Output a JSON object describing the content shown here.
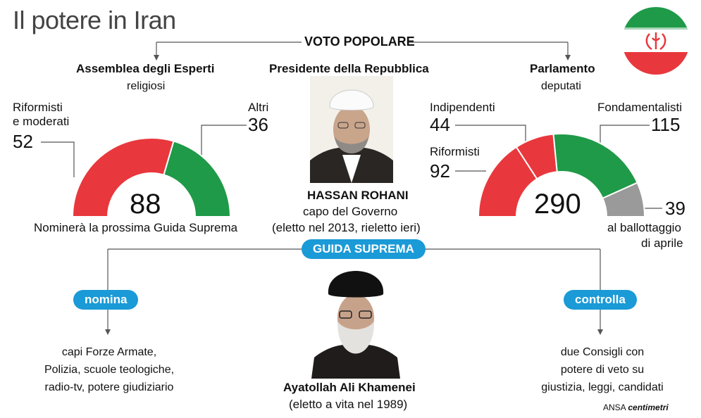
{
  "title": "Il potere in Iran",
  "voto_popolare": "VOTO POPOLARE",
  "assemblea": {
    "title": "Assemblea degli Esperti",
    "subtitle": "religiosi",
    "caption": "Nominerà la prossima Guida Suprema"
  },
  "presidente": {
    "title": "Presidente della Repubblica",
    "name": "HASSAN ROHANI",
    "role": "capo del Governo",
    "note": "(eletto nel 2013, rieletto ieri)"
  },
  "parlamento": {
    "title": "Parlamento",
    "subtitle": "deputati"
  },
  "guida": {
    "label": "GUIDA SUPREMA",
    "name": "Ayatollah Ali Khamenei",
    "note": "(eletto a vita nel 1989)",
    "nomina_label": "nomina",
    "nomina_lines": [
      "capi Forze Armate,",
      "Polizia, scuole teologiche,",
      "radio-tv, potere giudiziario"
    ],
    "controlla_label": "controlla",
    "controlla_lines": [
      "due Consigli con",
      "potere di veto su",
      "giustizia, leggi, candidati"
    ]
  },
  "chart_data": [
    {
      "type": "pie",
      "title": "Assemblea degli Esperti",
      "total": 88,
      "slices": [
        {
          "label": "Riformisti e moderati",
          "value": 52,
          "color": "#e8383d"
        },
        {
          "label": "Altri",
          "value": 36,
          "color": "#1f9a48"
        }
      ],
      "labels": {
        "riformisti_line1": "Riformisti",
        "riformisti_line2": "e moderati",
        "riformisti_value": "52",
        "altri": "Altri",
        "altri_value": "36",
        "total": "88"
      }
    },
    {
      "type": "pie",
      "title": "Parlamento",
      "total": 290,
      "slices": [
        {
          "label": "Riformisti",
          "value": 92,
          "color": "#e8383d"
        },
        {
          "label": "Indipendenti",
          "value": 44,
          "color": "#e8383d"
        },
        {
          "label": "Fondamentalisti",
          "value": 115,
          "color": "#1f9a48"
        },
        {
          "label": "al ballottaggio di aprile",
          "value": 39,
          "color": "#9a9a9a"
        }
      ],
      "labels": {
        "indipendenti": "Indipendenti",
        "indipendenti_value": "44",
        "riformisti": "Riformisti",
        "riformisti_value": "92",
        "fondamentalisti": "Fondamentalisti",
        "fondamentalisti_value": "115",
        "ballottaggio_value": "39",
        "ballottaggio_line1": "al ballottaggio",
        "ballottaggio_line2": "di aprile",
        "total": "290"
      }
    }
  ],
  "credit": {
    "ansa": "ANSA",
    "brand": "centimetri"
  },
  "colors": {
    "red": "#e8383d",
    "green": "#1f9a48",
    "grey": "#9a9a9a",
    "blue": "#1a9ad6"
  },
  "icons": {
    "flag": "iran-flag-icon",
    "portrait1": "rohani-portrait",
    "portrait2": "khamenei-portrait"
  }
}
